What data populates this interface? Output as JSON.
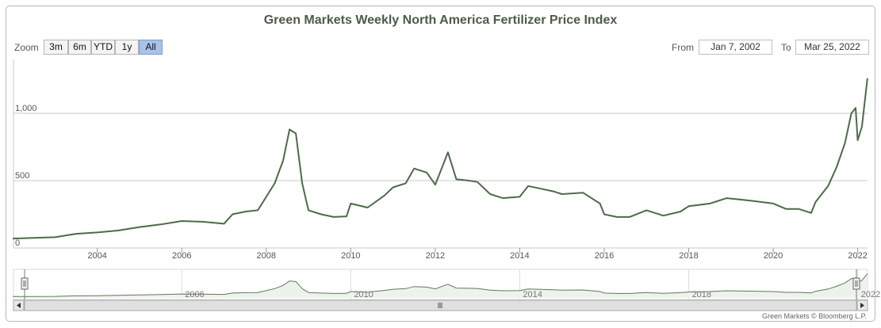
{
  "title": "Green Markets Weekly North America Fertilizer Price Index",
  "zoom": {
    "label": "Zoom",
    "buttons": [
      "3m",
      "6m",
      "YTD",
      "1y",
      "All"
    ],
    "active": "All"
  },
  "range": {
    "from_label": "From",
    "from_value": "Jan 7, 2002",
    "to_label": "To",
    "to_value": "Mar 25, 2022"
  },
  "credit": "Green Markets © Bloomberg L.P.",
  "colors": {
    "line": "#4c6b48",
    "navigator_line": "#5e7a59",
    "grid": "#c8c8c8",
    "axis_text": "#555555",
    "button_active": "#a9c2ea"
  },
  "chart_data": {
    "type": "line",
    "title": "Green Markets Weekly North America Fertilizer Price Index",
    "xlabel": "",
    "ylabel": "",
    "x_range": [
      "2002-01-07",
      "2022-03-25"
    ],
    "ylim": [
      0,
      1400
    ],
    "y_ticks": [
      "0",
      "500",
      "1,000"
    ],
    "x_ticks": [
      "2004",
      "2006",
      "2008",
      "2010",
      "2012",
      "2014",
      "2016",
      "2018",
      "2020",
      "2022"
    ],
    "navigator_ticks": [
      "2006",
      "2010",
      "2014",
      "2018",
      "2022"
    ],
    "grid": true,
    "series": [
      {
        "points": [
          [
            2002.0,
            70
          ],
          [
            2002.5,
            75
          ],
          [
            2003.0,
            80
          ],
          [
            2003.5,
            105
          ],
          [
            2004.0,
            115
          ],
          [
            2004.5,
            130
          ],
          [
            2005.0,
            155
          ],
          [
            2005.5,
            175
          ],
          [
            2006.0,
            200
          ],
          [
            2006.5,
            195
          ],
          [
            2007.0,
            180
          ],
          [
            2007.2,
            250
          ],
          [
            2007.5,
            270
          ],
          [
            2007.8,
            280
          ],
          [
            2008.0,
            380
          ],
          [
            2008.2,
            480
          ],
          [
            2008.4,
            650
          ],
          [
            2008.55,
            880
          ],
          [
            2008.7,
            850
          ],
          [
            2008.85,
            480
          ],
          [
            2009.0,
            280
          ],
          [
            2009.3,
            250
          ],
          [
            2009.6,
            230
          ],
          [
            2009.9,
            235
          ],
          [
            2010.0,
            330
          ],
          [
            2010.4,
            300
          ],
          [
            2010.8,
            390
          ],
          [
            2011.0,
            450
          ],
          [
            2011.3,
            480
          ],
          [
            2011.5,
            590
          ],
          [
            2011.8,
            560
          ],
          [
            2012.0,
            470
          ],
          [
            2012.3,
            710
          ],
          [
            2012.5,
            510
          ],
          [
            2012.8,
            500
          ],
          [
            2013.0,
            490
          ],
          [
            2013.3,
            400
          ],
          [
            2013.6,
            370
          ],
          [
            2014.0,
            380
          ],
          [
            2014.2,
            460
          ],
          [
            2014.5,
            440
          ],
          [
            2014.8,
            420
          ],
          [
            2015.0,
            400
          ],
          [
            2015.5,
            410
          ],
          [
            2015.9,
            330
          ],
          [
            2016.0,
            250
          ],
          [
            2016.3,
            230
          ],
          [
            2016.6,
            230
          ],
          [
            2017.0,
            280
          ],
          [
            2017.4,
            240
          ],
          [
            2017.8,
            270
          ],
          [
            2018.0,
            310
          ],
          [
            2018.5,
            330
          ],
          [
            2018.9,
            370
          ],
          [
            2019.2,
            360
          ],
          [
            2019.5,
            350
          ],
          [
            2020.0,
            330
          ],
          [
            2020.3,
            290
          ],
          [
            2020.6,
            290
          ],
          [
            2020.9,
            260
          ],
          [
            2021.0,
            340
          ],
          [
            2021.3,
            460
          ],
          [
            2021.5,
            600
          ],
          [
            2021.7,
            780
          ],
          [
            2021.85,
            1000
          ],
          [
            2021.95,
            1040
          ],
          [
            2022.0,
            800
          ],
          [
            2022.1,
            900
          ],
          [
            2022.23,
            1260
          ]
        ]
      }
    ]
  }
}
